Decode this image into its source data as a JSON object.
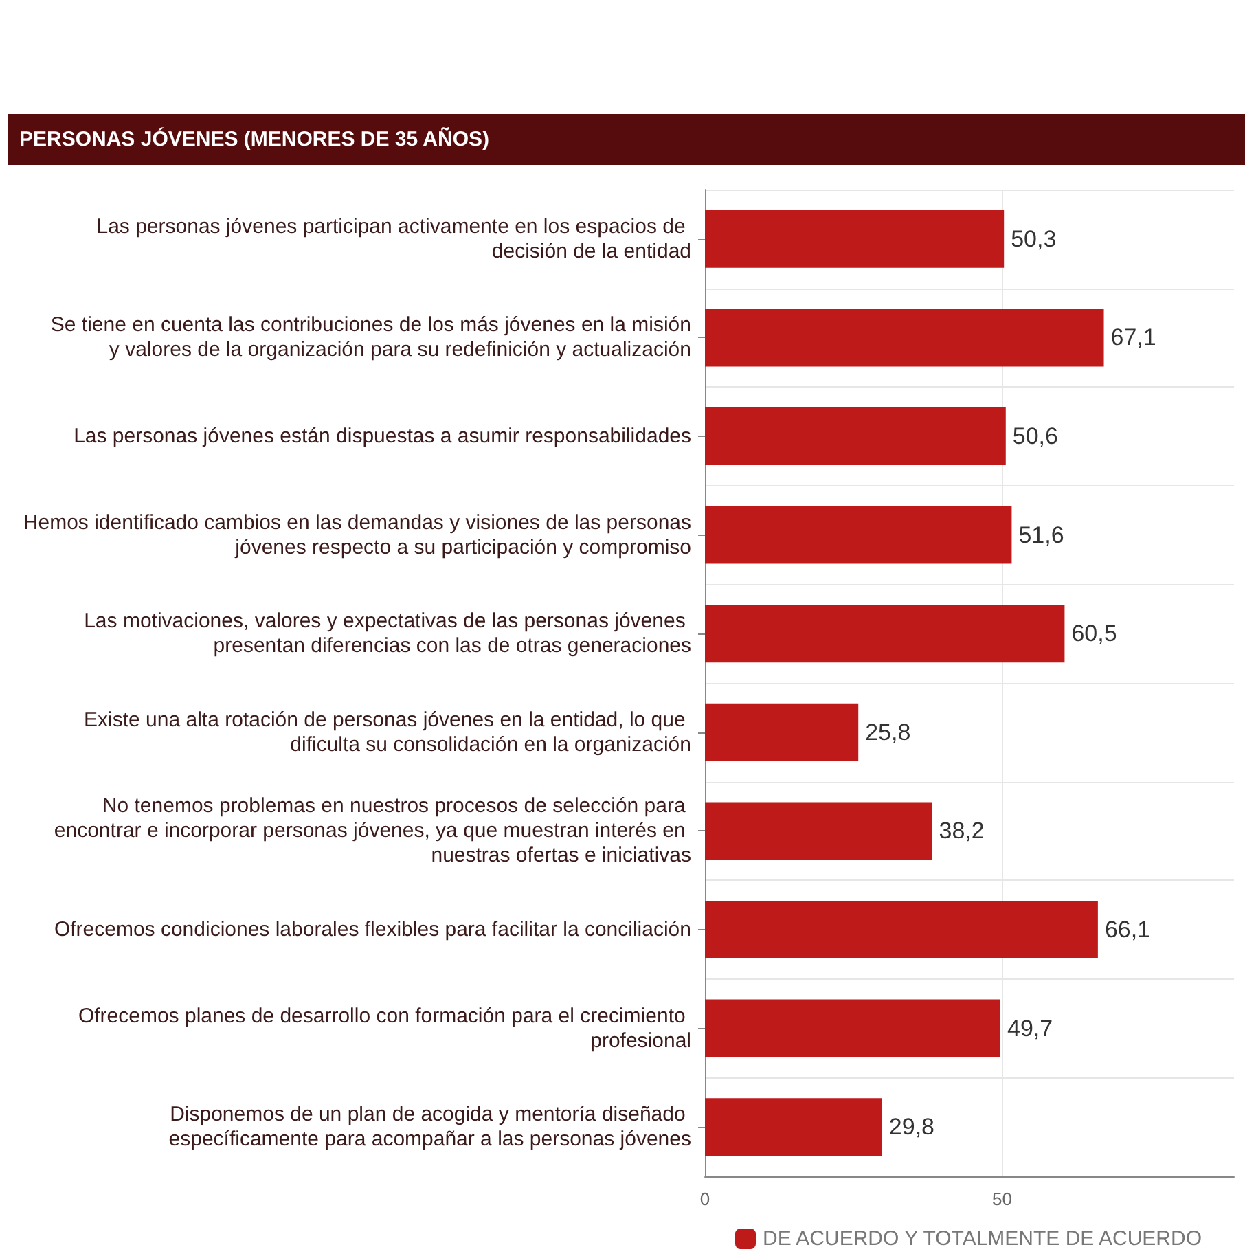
{
  "chart_data": {
    "type": "bar",
    "orientation": "horizontal",
    "title": "PERSONAS JÓVENES (MENORES DE 35 AÑOS)",
    "categories": [
      "Las personas jóvenes participan activamente en los espacios de decisión de la entidad",
      "Se tiene en cuenta las contribuciones de los más jóvenes en la misión y valores de la organización para su redefinición y actualización",
      "Las personas jóvenes están dispuestas a asumir responsabilidades",
      "Hemos identificado cambios en las demandas y visiones de las personas jóvenes respecto a su participación y compromiso",
      "Las motivaciones, valores y expectativas de las personas jóvenes presentan diferencias con las de otras generaciones",
      "Existe una alta rotación de personas jóvenes en la entidad, lo que dificulta su consolidación en la organización",
      "No tenemos problemas en nuestros procesos de selección para encontrar e incorporar personas jóvenes, ya que muestran interés en nuestras ofertas e iniciativas",
      "Ofrecemos condiciones laborales flexibles para facilitar la conciliación",
      "Ofrecemos planes de desarrollo con formación para el crecimiento profesional",
      "Disponemos de un plan de acogida y mentoría diseñado específicamente para acompañar a las personas jóvenes"
    ],
    "series": [
      {
        "name": "DE ACUERDO Y TOTALMENTE DE ACUERDO",
        "color": "#bf1a1a",
        "values": [
          50.3,
          67.1,
          50.6,
          51.6,
          60.5,
          25.8,
          38.2,
          66.1,
          49.7,
          29.8
        ],
        "value_labels": [
          "50,3",
          "67,1",
          "50,6",
          "51,6",
          "60,5",
          "25,8",
          "38,2",
          "66,1",
          "49,7",
          "29,8"
        ]
      }
    ],
    "xlim": [
      0,
      89
    ],
    "xticks": [
      0,
      50
    ],
    "grid": true,
    "legend": "bottom"
  }
}
